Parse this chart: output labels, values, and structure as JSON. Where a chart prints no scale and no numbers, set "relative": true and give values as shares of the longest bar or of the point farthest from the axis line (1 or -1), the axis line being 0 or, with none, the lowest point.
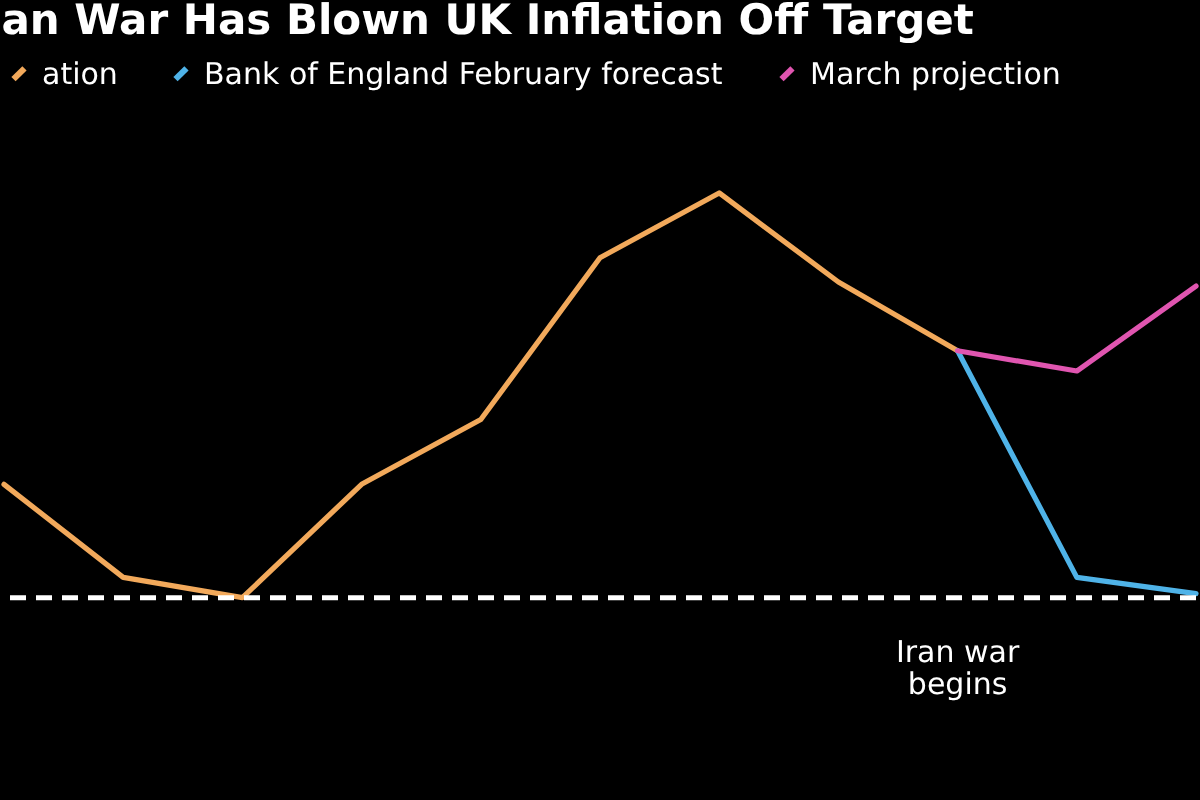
{
  "chart_data": {
    "type": "line",
    "title": "an War Has Blown UK Inflation Off Target",
    "relative": true,
    "categories": [
      null,
      null,
      null,
      null,
      null,
      null,
      null,
      null,
      null,
      null,
      null
    ],
    "series": [
      {
        "name": "ation",
        "color": "#f2a95b",
        "values": [
          0.28,
          0.05,
          0,
          0.28,
          0.44,
          0.84,
          1,
          0.78,
          0.61,
          null,
          null
        ]
      },
      {
        "name": "Bank of England February forecast",
        "color": "#4fb3e8",
        "values": [
          null,
          null,
          null,
          null,
          null,
          null,
          null,
          null,
          0.61,
          0.05,
          0.01
        ]
      },
      {
        "name": "March projection",
        "color": "#e055b0",
        "values": [
          null,
          null,
          null,
          null,
          null,
          null,
          null,
          null,
          0.61,
          0.56,
          0.77
        ]
      }
    ],
    "ref_lines": [
      {
        "axis": "y",
        "value": 0,
        "color": "#ffffff",
        "line_style": "dashed"
      }
    ],
    "annotations": [
      "Iran war\nbegins"
    ],
    "legend": "top left",
    "line_style": "solid",
    "marker": "none"
  }
}
